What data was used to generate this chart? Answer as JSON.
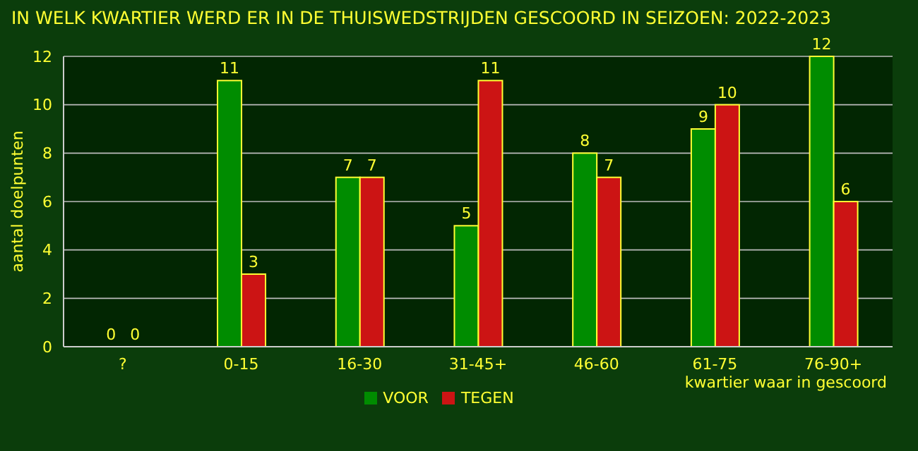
{
  "chart_data": {
    "type": "bar",
    "title": "IN WELK KWARTIER WERD ER IN DE THUISWEDSTRIJDEN GESCOORD IN SEIZOEN: 2022-2023",
    "xlabel": "kwartier waar in gescoord",
    "ylabel": "aantal doelpunten",
    "categories": [
      "?",
      "0-15",
      "16-30",
      "31-45+",
      "46-60",
      "61-75",
      "76-90+"
    ],
    "series": [
      {
        "name": "VOOR",
        "color": "#008c00",
        "values": [
          0,
          11,
          7,
          5,
          8,
          9,
          12
        ]
      },
      {
        "name": "TEGEN",
        "color": "#cc1414",
        "values": [
          0,
          3,
          7,
          11,
          7,
          10,
          6
        ]
      }
    ],
    "ylim": [
      0,
      12
    ],
    "yticks": [
      0,
      2,
      4,
      6,
      8,
      10,
      12
    ],
    "grid": "y",
    "legend": "bottom",
    "data_labels": true
  }
}
